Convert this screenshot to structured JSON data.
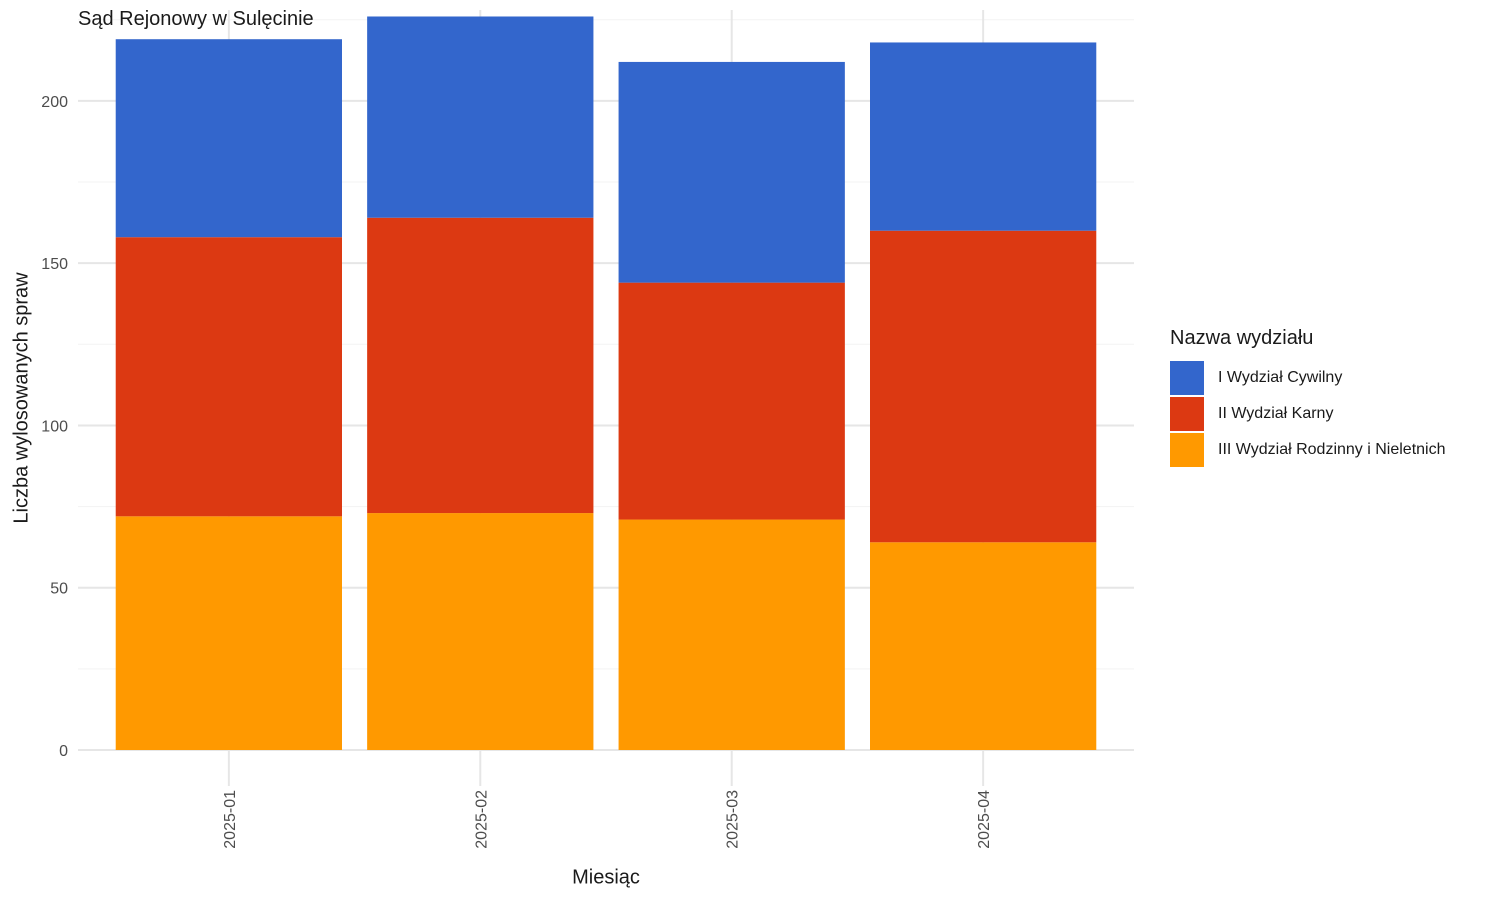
{
  "chart_data": {
    "type": "bar",
    "stacked": true,
    "title": "Sąd Rejonowy w Sulęcinie",
    "xlabel": "Miesiąc",
    "ylabel": "Liczba wylosowanych spraw",
    "categories": [
      "2025-01",
      "2025-02",
      "2025-03",
      "2025-04"
    ],
    "series": [
      {
        "name": "III Wydział Rodzinny i Nieletnich",
        "color": "#ff9900",
        "values": [
          72,
          73,
          71,
          64
        ]
      },
      {
        "name": "II Wydział Karny",
        "color": "#dc3912",
        "values": [
          86,
          91,
          73,
          96
        ]
      },
      {
        "name": "I Wydział Cywilny",
        "color": "#3366cc",
        "values": [
          61,
          62,
          68,
          58
        ]
      }
    ],
    "legend_title": "Nazwa wydziału",
    "legend_order": [
      "I Wydział Cywilny",
      "II Wydział Karny",
      "III Wydział Rodzinny i Nieletnich"
    ],
    "yticks": [
      0,
      50,
      100,
      150,
      200
    ],
    "ylim": [
      0,
      228
    ],
    "grid": true,
    "legend_position": "right"
  }
}
